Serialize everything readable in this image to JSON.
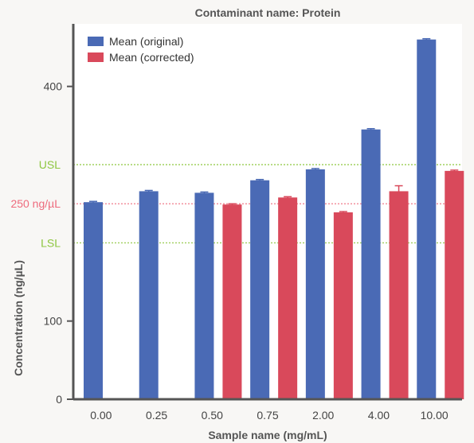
{
  "chart_data": {
    "type": "bar",
    "title": "Contaminant name: Protein",
    "xlabel": "Sample name (mg/mL)",
    "ylabel": "Concentration (ng/µL)",
    "categories": [
      "0.00",
      "0.25",
      "0.50",
      "0.75",
      "2.00",
      "4.00",
      "10.00"
    ],
    "series": [
      {
        "name": "Mean (original)",
        "color": "#4a6ab5",
        "values": [
          252,
          266,
          264,
          280,
          294,
          345,
          460
        ],
        "error": [
          1,
          1,
          1,
          1,
          1,
          1,
          1
        ]
      },
      {
        "name": "Mean (corrected)",
        "color": "#d9495b",
        "values": [
          null,
          null,
          249,
          258,
          239,
          266,
          292
        ],
        "error": [
          null,
          null,
          1,
          1,
          1,
          7,
          1
        ]
      }
    ],
    "ylim": [
      0,
      480
    ],
    "yticks": [
      0,
      100,
      400
    ],
    "reference_lines": [
      {
        "label": "USL",
        "value": 300,
        "color": "#8dc63f"
      },
      {
        "label": "250 ng/µL",
        "value": 250,
        "color": "#ee6b7d"
      },
      {
        "label": "LSL",
        "value": 200,
        "color": "#8dc63f"
      }
    ],
    "legend_position": "top-left",
    "grid": false
  }
}
